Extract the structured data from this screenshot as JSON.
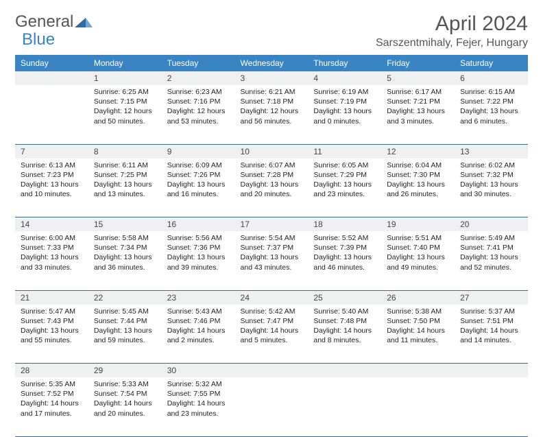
{
  "logo": {
    "general": "General",
    "blue": "Blue"
  },
  "title": "April 2024",
  "location": "Sarszentmihaly, Fejer, Hungary",
  "colors": {
    "header_bg": "#3a84c4",
    "daynum_bg": "#eef0f1",
    "row_border": "#3a6a94",
    "text": "#333"
  },
  "weekdays": [
    "Sunday",
    "Monday",
    "Tuesday",
    "Wednesday",
    "Thursday",
    "Friday",
    "Saturday"
  ],
  "weeks": [
    {
      "nums": [
        "",
        "1",
        "2",
        "3",
        "4",
        "5",
        "6"
      ],
      "cells": [
        null,
        {
          "sunrise": "Sunrise: 6:25 AM",
          "sunset": "Sunset: 7:15 PM",
          "daylight": "Daylight: 12 hours and 50 minutes."
        },
        {
          "sunrise": "Sunrise: 6:23 AM",
          "sunset": "Sunset: 7:16 PM",
          "daylight": "Daylight: 12 hours and 53 minutes."
        },
        {
          "sunrise": "Sunrise: 6:21 AM",
          "sunset": "Sunset: 7:18 PM",
          "daylight": "Daylight: 12 hours and 56 minutes."
        },
        {
          "sunrise": "Sunrise: 6:19 AM",
          "sunset": "Sunset: 7:19 PM",
          "daylight": "Daylight: 13 hours and 0 minutes."
        },
        {
          "sunrise": "Sunrise: 6:17 AM",
          "sunset": "Sunset: 7:21 PM",
          "daylight": "Daylight: 13 hours and 3 minutes."
        },
        {
          "sunrise": "Sunrise: 6:15 AM",
          "sunset": "Sunset: 7:22 PM",
          "daylight": "Daylight: 13 hours and 6 minutes."
        }
      ]
    },
    {
      "nums": [
        "7",
        "8",
        "9",
        "10",
        "11",
        "12",
        "13"
      ],
      "cells": [
        {
          "sunrise": "Sunrise: 6:13 AM",
          "sunset": "Sunset: 7:23 PM",
          "daylight": "Daylight: 13 hours and 10 minutes."
        },
        {
          "sunrise": "Sunrise: 6:11 AM",
          "sunset": "Sunset: 7:25 PM",
          "daylight": "Daylight: 13 hours and 13 minutes."
        },
        {
          "sunrise": "Sunrise: 6:09 AM",
          "sunset": "Sunset: 7:26 PM",
          "daylight": "Daylight: 13 hours and 16 minutes."
        },
        {
          "sunrise": "Sunrise: 6:07 AM",
          "sunset": "Sunset: 7:28 PM",
          "daylight": "Daylight: 13 hours and 20 minutes."
        },
        {
          "sunrise": "Sunrise: 6:05 AM",
          "sunset": "Sunset: 7:29 PM",
          "daylight": "Daylight: 13 hours and 23 minutes."
        },
        {
          "sunrise": "Sunrise: 6:04 AM",
          "sunset": "Sunset: 7:30 PM",
          "daylight": "Daylight: 13 hours and 26 minutes."
        },
        {
          "sunrise": "Sunrise: 6:02 AM",
          "sunset": "Sunset: 7:32 PM",
          "daylight": "Daylight: 13 hours and 30 minutes."
        }
      ]
    },
    {
      "nums": [
        "14",
        "15",
        "16",
        "17",
        "18",
        "19",
        "20"
      ],
      "cells": [
        {
          "sunrise": "Sunrise: 6:00 AM",
          "sunset": "Sunset: 7:33 PM",
          "daylight": "Daylight: 13 hours and 33 minutes."
        },
        {
          "sunrise": "Sunrise: 5:58 AM",
          "sunset": "Sunset: 7:34 PM",
          "daylight": "Daylight: 13 hours and 36 minutes."
        },
        {
          "sunrise": "Sunrise: 5:56 AM",
          "sunset": "Sunset: 7:36 PM",
          "daylight": "Daylight: 13 hours and 39 minutes."
        },
        {
          "sunrise": "Sunrise: 5:54 AM",
          "sunset": "Sunset: 7:37 PM",
          "daylight": "Daylight: 13 hours and 43 minutes."
        },
        {
          "sunrise": "Sunrise: 5:52 AM",
          "sunset": "Sunset: 7:39 PM",
          "daylight": "Daylight: 13 hours and 46 minutes."
        },
        {
          "sunrise": "Sunrise: 5:51 AM",
          "sunset": "Sunset: 7:40 PM",
          "daylight": "Daylight: 13 hours and 49 minutes."
        },
        {
          "sunrise": "Sunrise: 5:49 AM",
          "sunset": "Sunset: 7:41 PM",
          "daylight": "Daylight: 13 hours and 52 minutes."
        }
      ]
    },
    {
      "nums": [
        "21",
        "22",
        "23",
        "24",
        "25",
        "26",
        "27"
      ],
      "cells": [
        {
          "sunrise": "Sunrise: 5:47 AM",
          "sunset": "Sunset: 7:43 PM",
          "daylight": "Daylight: 13 hours and 55 minutes."
        },
        {
          "sunrise": "Sunrise: 5:45 AM",
          "sunset": "Sunset: 7:44 PM",
          "daylight": "Daylight: 13 hours and 59 minutes."
        },
        {
          "sunrise": "Sunrise: 5:43 AM",
          "sunset": "Sunset: 7:46 PM",
          "daylight": "Daylight: 14 hours and 2 minutes."
        },
        {
          "sunrise": "Sunrise: 5:42 AM",
          "sunset": "Sunset: 7:47 PM",
          "daylight": "Daylight: 14 hours and 5 minutes."
        },
        {
          "sunrise": "Sunrise: 5:40 AM",
          "sunset": "Sunset: 7:48 PM",
          "daylight": "Daylight: 14 hours and 8 minutes."
        },
        {
          "sunrise": "Sunrise: 5:38 AM",
          "sunset": "Sunset: 7:50 PM",
          "daylight": "Daylight: 14 hours and 11 minutes."
        },
        {
          "sunrise": "Sunrise: 5:37 AM",
          "sunset": "Sunset: 7:51 PM",
          "daylight": "Daylight: 14 hours and 14 minutes."
        }
      ]
    },
    {
      "nums": [
        "28",
        "29",
        "30",
        "",
        "",
        "",
        ""
      ],
      "cells": [
        {
          "sunrise": "Sunrise: 5:35 AM",
          "sunset": "Sunset: 7:52 PM",
          "daylight": "Daylight: 14 hours and 17 minutes."
        },
        {
          "sunrise": "Sunrise: 5:33 AM",
          "sunset": "Sunset: 7:54 PM",
          "daylight": "Daylight: 14 hours and 20 minutes."
        },
        {
          "sunrise": "Sunrise: 5:32 AM",
          "sunset": "Sunset: 7:55 PM",
          "daylight": "Daylight: 14 hours and 23 minutes."
        },
        null,
        null,
        null,
        null
      ]
    }
  ]
}
